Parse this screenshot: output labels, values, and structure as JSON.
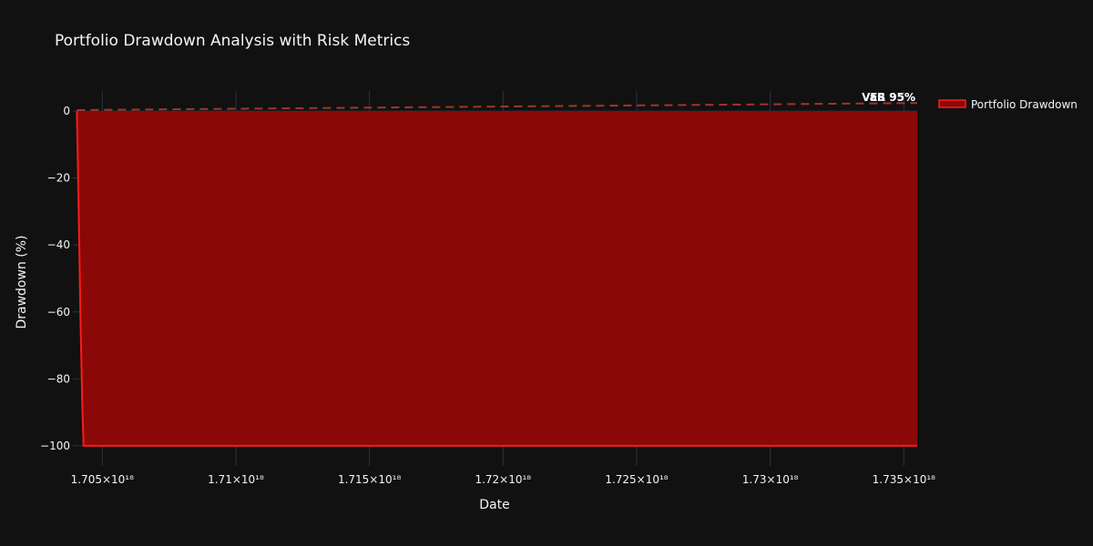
{
  "chart_data": {
    "type": "area",
    "title": "Portfolio Drawdown Analysis with Risk Metrics",
    "xlabel": "Date",
    "ylabel": "Drawdown (%)",
    "xlim": [
      1.7039e+18,
      1.7355e+18
    ],
    "ylim": [
      -106,
      6
    ],
    "x_ticks": [
      {
        "value": 1.705e+18,
        "label": "1.705×10¹⁸"
      },
      {
        "value": 1.71e+18,
        "label": "1.71×10¹⁸"
      },
      {
        "value": 1.715e+18,
        "label": "1.715×10¹⁸"
      },
      {
        "value": 1.72e+18,
        "label": "1.72×10¹⁸"
      },
      {
        "value": 1.725e+18,
        "label": "1.725×10¹⁸"
      },
      {
        "value": 1.73e+18,
        "label": "1.73×10¹⁸"
      },
      {
        "value": 1.735e+18,
        "label": "1.735×10¹⁸"
      }
    ],
    "y_ticks": [
      {
        "value": 0,
        "label": "0"
      },
      {
        "value": -20,
        "label": "−20"
      },
      {
        "value": -40,
        "label": "−40"
      },
      {
        "value": -60,
        "label": "−60"
      },
      {
        "value": -80,
        "label": "−80"
      },
      {
        "value": -100,
        "label": "−100"
      }
    ],
    "grid": true,
    "legend_position": "top-right",
    "series": [
      {
        "name": "Portfolio Drawdown",
        "color": "#ff1a1a",
        "fill_color": "#8b0808",
        "x": [
          1.70405e+18,
          1.70412e+18,
          1.70418e+18,
          1.70425e+18,
          1.7043e+18,
          1.7045e+18,
          1.71e+18,
          1.72e+18,
          1.73e+18,
          1.7355e+18
        ],
        "y": [
          0,
          -30,
          -60,
          -87,
          -100,
          -100,
          -100,
          -100,
          -100,
          -100
        ]
      }
    ],
    "reference_lines": [
      {
        "color": "#c0392b",
        "dash": "dash",
        "x": [
          1.70405e+18,
          1.7355e+18
        ],
        "y": [
          0.3,
          2.4
        ]
      }
    ],
    "annotations": [
      {
        "text": "VaR 95%",
        "x": 1.7355e+18,
        "y": 2.8
      },
      {
        "text": "ES 95%",
        "x": 1.7355e+18,
        "y": 2.8
      }
    ]
  }
}
